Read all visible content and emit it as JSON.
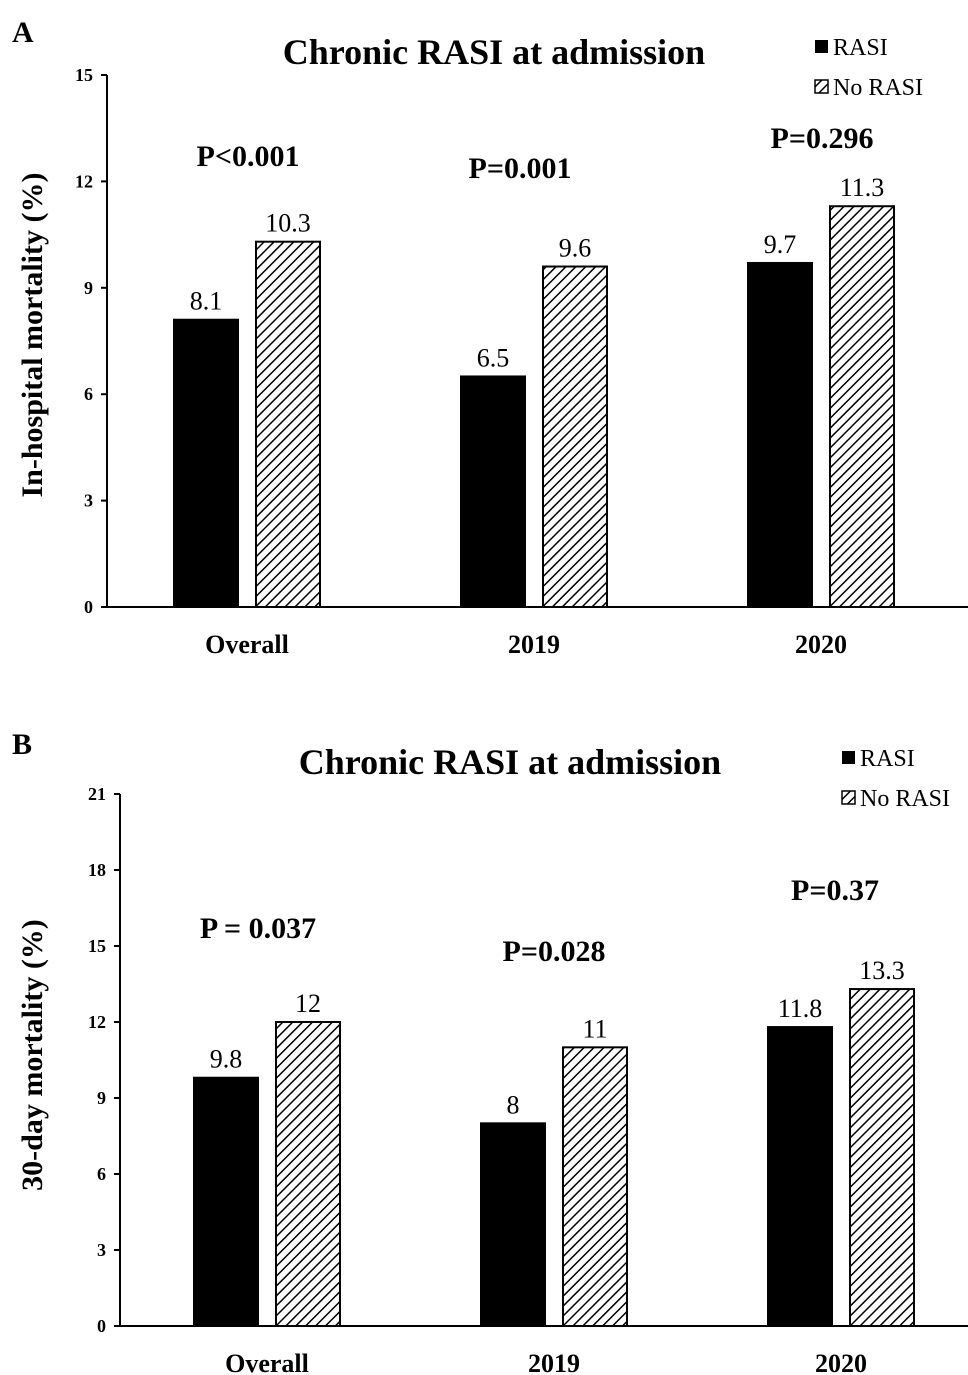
{
  "chart_data": [
    {
      "type": "bar",
      "panel_label": "A",
      "title": "Chronic RASI at admission",
      "ylabel": "In-hospital  mortality  (%)",
      "xlabel": "",
      "categories": [
        "Overall",
        "2019",
        "2020"
      ],
      "yticks": [
        "0",
        "3",
        "6",
        "9",
        "12",
        "15"
      ],
      "ylim": [
        0,
        15
      ],
      "series": [
        {
          "name": "RASI",
          "values": [
            8.1,
            6.5,
            9.7
          ],
          "labels": [
            "8.1",
            "6.5",
            "9.7"
          ],
          "fill": "solid",
          "color": "#000000"
        },
        {
          "name": "No RASI",
          "values": [
            10.3,
            9.6,
            11.3
          ],
          "labels": [
            "10.3",
            "9.6",
            "11.3"
          ],
          "fill": "hatched",
          "color": "#000000"
        }
      ],
      "annotations": [
        "P<0.001",
        "P=0.001",
        "P=0.296"
      ],
      "legend_position": "top-right",
      "grid": false
    },
    {
      "type": "bar",
      "panel_label": "B",
      "title": "Chronic RASI at admission",
      "ylabel": "30-day mortality  (%)",
      "xlabel": "",
      "categories": [
        "Overall",
        "2019",
        "2020"
      ],
      "yticks": [
        "0",
        "3",
        "6",
        "9",
        "12",
        "15",
        "18",
        "21"
      ],
      "ylim": [
        0,
        21
      ],
      "series": [
        {
          "name": "RASI",
          "values": [
            9.8,
            8,
            11.8
          ],
          "labels": [
            "9.8",
            "8",
            "11.8"
          ],
          "fill": "solid",
          "color": "#000000"
        },
        {
          "name": "No RASI",
          "values": [
            12,
            11,
            13.3
          ],
          "labels": [
            "12",
            "11",
            "13.3"
          ],
          "fill": "hatched",
          "color": "#000000"
        }
      ],
      "annotations": [
        "P = 0.037",
        "P=0.028",
        "P=0.37"
      ],
      "legend_position": "top-right",
      "grid": false
    }
  ]
}
